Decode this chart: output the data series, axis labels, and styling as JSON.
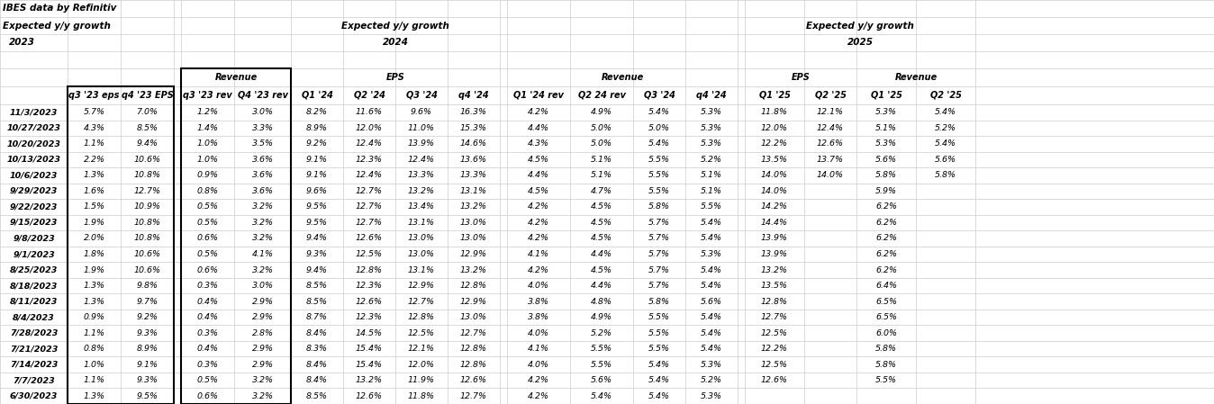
{
  "title_line1": "IBES data by Refinitiv",
  "title_line2": "Expected y/y growth",
  "title_year_2023": "2023",
  "title_year_2024": "2024",
  "title_year_2025": "2025",
  "header_growth_2024": "Expected y/y growth",
  "header_growth_2025": "Expected y/y growth",
  "sub_revenue": "Revenue",
  "sub_eps_2024": "EPS",
  "sub_revenue_2024": "Revenue",
  "sub_eps_2025": "EPS",
  "sub_revenue_2025": "Revenue",
  "col_labels": [
    "",
    "q3 '23 eps",
    "q4 '23 EPS",
    "",
    "q3 '23 rev",
    "Q4 '23 rev",
    "Q1 '24",
    "Q2 '24",
    "Q3 '24",
    "q4 '24",
    "",
    "Q1 '24 rev",
    "Q2 24 rev",
    "Q3 '24",
    "q4 '24",
    "",
    "Q1 '25",
    "Q2 '25",
    "Q1 '25",
    "Q2 '25"
  ],
  "data": [
    [
      "11/3/2023",
      "5.7%",
      "7.0%",
      "1.2%",
      "3.0%",
      "8.2%",
      "11.6%",
      "9.6%",
      "16.3%",
      "4.2%",
      "4.9%",
      "5.4%",
      "5.3%",
      "11.8%",
      "12.1%",
      "5.3%",
      "5.4%"
    ],
    [
      "10/27/2023",
      "4.3%",
      "8.5%",
      "1.4%",
      "3.3%",
      "8.9%",
      "12.0%",
      "11.0%",
      "15.3%",
      "4.4%",
      "5.0%",
      "5.0%",
      "5.3%",
      "12.0%",
      "12.4%",
      "5.1%",
      "5.2%"
    ],
    [
      "10/20/2023",
      "1.1%",
      "9.4%",
      "1.0%",
      "3.5%",
      "9.2%",
      "12.4%",
      "13.9%",
      "14.6%",
      "4.3%",
      "5.0%",
      "5.4%",
      "5.3%",
      "12.2%",
      "12.6%",
      "5.3%",
      "5.4%"
    ],
    [
      "10/13/2023",
      "2.2%",
      "10.6%",
      "1.0%",
      "3.6%",
      "9.1%",
      "12.3%",
      "12.4%",
      "13.6%",
      "4.5%",
      "5.1%",
      "5.5%",
      "5.2%",
      "13.5%",
      "13.7%",
      "5.6%",
      "5.6%"
    ],
    [
      "10/6/2023",
      "1.3%",
      "10.8%",
      "0.9%",
      "3.6%",
      "9.1%",
      "12.4%",
      "13.3%",
      "13.3%",
      "4.4%",
      "5.1%",
      "5.5%",
      "5.1%",
      "14.0%",
      "14.0%",
      "5.8%",
      "5.8%"
    ],
    [
      "9/29/2023",
      "1.6%",
      "12.7%",
      "0.8%",
      "3.6%",
      "9.6%",
      "12.7%",
      "13.2%",
      "13.1%",
      "4.5%",
      "4.7%",
      "5.5%",
      "5.1%",
      "14.0%",
      "",
      "5.9%",
      ""
    ],
    [
      "9/22/2023",
      "1.5%",
      "10.9%",
      "0.5%",
      "3.2%",
      "9.5%",
      "12.7%",
      "13.4%",
      "13.2%",
      "4.2%",
      "4.5%",
      "5.8%",
      "5.5%",
      "14.2%",
      "",
      "6.2%",
      ""
    ],
    [
      "9/15/2023",
      "1.9%",
      "10.8%",
      "0.5%",
      "3.2%",
      "9.5%",
      "12.7%",
      "13.1%",
      "13.0%",
      "4.2%",
      "4.5%",
      "5.7%",
      "5.4%",
      "14.4%",
      "",
      "6.2%",
      ""
    ],
    [
      "9/8/2023",
      "2.0%",
      "10.8%",
      "0.6%",
      "3.2%",
      "9.4%",
      "12.6%",
      "13.0%",
      "13.0%",
      "4.2%",
      "4.5%",
      "5.7%",
      "5.4%",
      "13.9%",
      "",
      "6.2%",
      ""
    ],
    [
      "9/1/2023",
      "1.8%",
      "10.6%",
      "0.5%",
      "4.1%",
      "9.3%",
      "12.5%",
      "13.0%",
      "12.9%",
      "4.1%",
      "4.4%",
      "5.7%",
      "5.3%",
      "13.9%",
      "",
      "6.2%",
      ""
    ],
    [
      "8/25/2023",
      "1.9%",
      "10.6%",
      "0.6%",
      "3.2%",
      "9.4%",
      "12.8%",
      "13.1%",
      "13.2%",
      "4.2%",
      "4.5%",
      "5.7%",
      "5.4%",
      "13.2%",
      "",
      "6.2%",
      ""
    ],
    [
      "8/18/2023",
      "1.3%",
      "9.8%",
      "0.3%",
      "3.0%",
      "8.5%",
      "12.3%",
      "12.9%",
      "12.8%",
      "4.0%",
      "4.4%",
      "5.7%",
      "5.4%",
      "13.5%",
      "",
      "6.4%",
      ""
    ],
    [
      "8/11/2023",
      "1.3%",
      "9.7%",
      "0.4%",
      "2.9%",
      "8.5%",
      "12.6%",
      "12.7%",
      "12.9%",
      "3.8%",
      "4.8%",
      "5.8%",
      "5.6%",
      "12.8%",
      "",
      "6.5%",
      ""
    ],
    [
      "8/4/2023",
      "0.9%",
      "9.2%",
      "0.4%",
      "2.9%",
      "8.7%",
      "12.3%",
      "12.8%",
      "13.0%",
      "3.8%",
      "4.9%",
      "5.5%",
      "5.4%",
      "12.7%",
      "",
      "6.5%",
      ""
    ],
    [
      "7/28/2023",
      "1.1%",
      "9.3%",
      "0.3%",
      "2.8%",
      "8.4%",
      "14.5%",
      "12.5%",
      "12.7%",
      "4.0%",
      "5.2%",
      "5.5%",
      "5.4%",
      "12.5%",
      "",
      "6.0%",
      ""
    ],
    [
      "7/21/2023",
      "0.8%",
      "8.9%",
      "0.4%",
      "2.9%",
      "8.3%",
      "15.4%",
      "12.1%",
      "12.8%",
      "4.1%",
      "5.5%",
      "5.5%",
      "5.4%",
      "12.2%",
      "",
      "5.8%",
      ""
    ],
    [
      "7/14/2023",
      "1.0%",
      "9.1%",
      "0.3%",
      "2.9%",
      "8.4%",
      "15.4%",
      "12.0%",
      "12.8%",
      "4.0%",
      "5.5%",
      "5.4%",
      "5.3%",
      "12.5%",
      "",
      "5.8%",
      ""
    ],
    [
      "7/7/2023",
      "1.1%",
      "9.3%",
      "0.5%",
      "3.2%",
      "8.4%",
      "13.2%",
      "11.9%",
      "12.6%",
      "4.2%",
      "5.6%",
      "5.4%",
      "5.2%",
      "12.6%",
      "",
      "5.5%",
      ""
    ],
    [
      "6/30/2023",
      "1.3%",
      "9.5%",
      "0.6%",
      "3.2%",
      "8.5%",
      "12.6%",
      "11.8%",
      "12.7%",
      "4.2%",
      "5.4%",
      "5.4%",
      "5.3%",
      "",
      "",
      "",
      ""
    ]
  ],
  "bg_color": "#ffffff",
  "grid_color": "#cccccc",
  "text_color": "#000000"
}
